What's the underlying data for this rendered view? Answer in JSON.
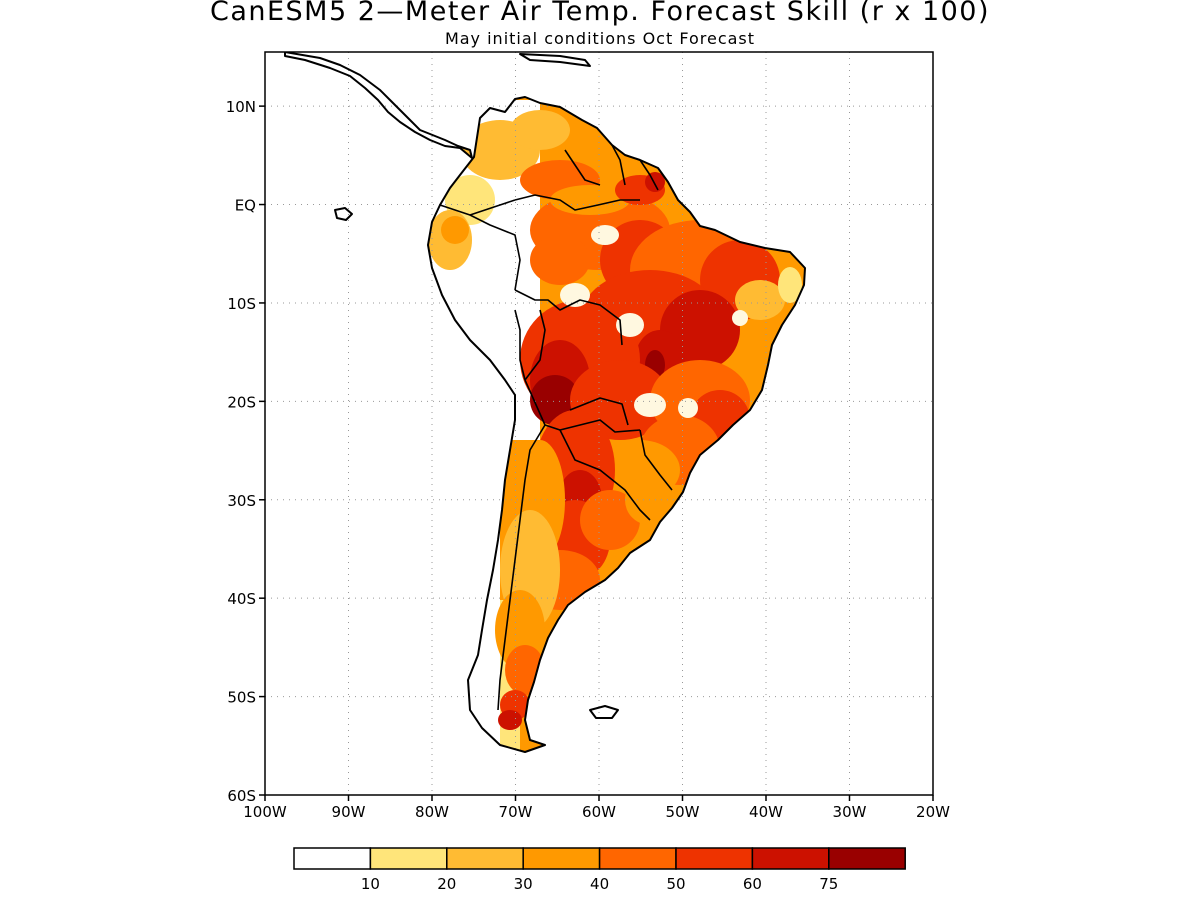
{
  "title": "CanESM5 2—Meter Air Temp. Forecast Skill (r x 100)",
  "subtitle": "May initial conditions  Oct Forecast",
  "map": {
    "lat_labels": [
      "10N",
      "EQ",
      "10S",
      "20S",
      "30S",
      "40S",
      "50S",
      "60S"
    ],
    "lat_values": [
      10,
      0,
      -10,
      -20,
      -30,
      -40,
      -50,
      -60
    ],
    "lon_labels": [
      "100W",
      "90W",
      "80W",
      "70W",
      "60W",
      "50W",
      "40W",
      "30W",
      "20W"
    ],
    "lon_values": [
      -100,
      -90,
      -80,
      -70,
      -60,
      -50,
      -40,
      -30,
      -20
    ],
    "lon_range": [
      -100,
      -20
    ],
    "lat_range": [
      -60,
      15.5
    ],
    "grid": "dotted",
    "region": "South America"
  },
  "colorbar": {
    "labels": [
      "10",
      "20",
      "30",
      "40",
      "50",
      "60",
      "75"
    ],
    "colors": [
      "#ffffff",
      "#ffe57a",
      "#ffbb33",
      "#ff9900",
      "#ff6600",
      "#ee3300",
      "#cc1100",
      "#990000"
    ]
  }
}
